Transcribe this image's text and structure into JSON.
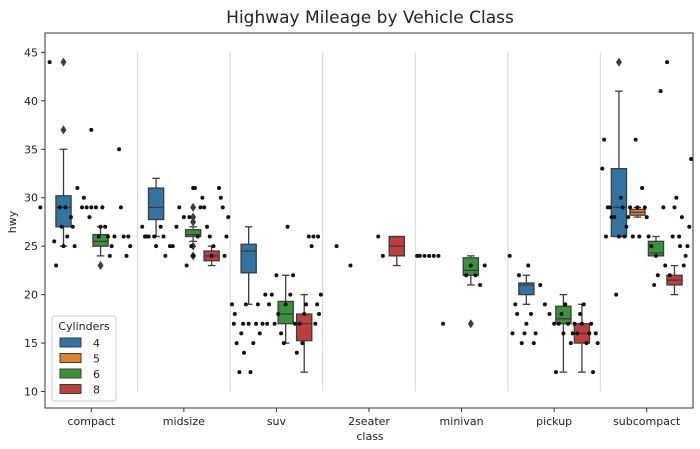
{
  "chart_data": {
    "type": "boxplot",
    "title": "Highway Mileage by Vehicle Class",
    "xlabel": "class",
    "ylabel": "hwy",
    "ylim": [
      8.3,
      47.0
    ],
    "yticks": [
      10,
      15,
      20,
      25,
      30,
      35,
      40,
      45
    ],
    "categories": [
      "compact",
      "midsize",
      "suv",
      "2seater",
      "minivan",
      "pickup",
      "subcompact"
    ],
    "legend": {
      "title": "Cylinders",
      "position": "lower-left"
    },
    "grid": false,
    "series": [
      {
        "name": "4",
        "color": "#3274a1",
        "boxes": {
          "compact": {
            "whislo": 25,
            "q1": 27,
            "med": 29,
            "q3": 30.2,
            "whishi": 35,
            "fliers": [
              37,
              44
            ]
          },
          "midsize": {
            "whislo": 26,
            "q1": 27.75,
            "med": 29,
            "q3": 31,
            "whishi": 32,
            "fliers": []
          },
          "suv": {
            "whislo": 19,
            "q1": 22.25,
            "med": 24.5,
            "q3": 25.2,
            "whishi": 27,
            "fliers": []
          },
          "minivan": null,
          "pickup": {
            "whislo": 19,
            "q1": 20,
            "med": 21,
            "q3": 21.2,
            "whishi": 22,
            "fliers": []
          },
          "subcompact": {
            "whislo": 26,
            "q1": 26,
            "med": 29,
            "q3": 33,
            "whishi": 41,
            "fliers": [
              44
            ]
          }
        }
      },
      {
        "name": "5",
        "color": "#e1812c",
        "boxes": {
          "subcompact": {
            "whislo": 28,
            "q1": 28.2,
            "med": 28.5,
            "q3": 28.8,
            "whishi": 29,
            "fliers": []
          }
        }
      },
      {
        "name": "6",
        "color": "#3a923a",
        "boxes": {
          "compact": {
            "whislo": 24,
            "q1": 25,
            "med": 25.5,
            "q3": 26.2,
            "whishi": 27,
            "fliers": [
              23
            ]
          },
          "midsize": {
            "whislo": 25.5,
            "q1": 26,
            "med": 26.2,
            "q3": 26.7,
            "whishi": 27,
            "fliers": [
              29,
              28,
              27.5,
              25,
              24
            ]
          },
          "suv": {
            "whislo": 15,
            "q1": 17,
            "med": 18,
            "q3": 19.3,
            "whishi": 22,
            "fliers": []
          },
          "minivan": {
            "whislo": 21,
            "q1": 22,
            "med": 22.5,
            "q3": 23.8,
            "whishi": 24,
            "fliers": [
              17
            ]
          },
          "pickup": {
            "whislo": 12,
            "q1": 17,
            "med": 17.5,
            "q3": 18.8,
            "whishi": 20,
            "fliers": []
          },
          "subcompact": {
            "whislo": 24,
            "q1": 24,
            "med": 24.3,
            "q3": 25.5,
            "whishi": 26,
            "fliers": []
          }
        }
      },
      {
        "name": "8",
        "color": "#c03d3e",
        "boxes": {
          "midsize": {
            "whislo": 23,
            "q1": 23.5,
            "med": 24,
            "q3": 24.5,
            "whishi": 25,
            "fliers": []
          },
          "suv": {
            "whislo": 12,
            "q1": 15.25,
            "med": 17,
            "q3": 18,
            "whishi": 20,
            "fliers": []
          },
          "2seater": {
            "whislo": 23,
            "q1": 24,
            "med": 25,
            "q3": 26,
            "whishi": 26,
            "fliers": []
          },
          "minivan": null,
          "pickup": {
            "whislo": 12,
            "q1": 15,
            "med": 16,
            "q3": 17,
            "whishi": 19,
            "fliers": []
          },
          "subcompact": {
            "whislo": 20,
            "q1": 21,
            "med": 21.5,
            "q3": 22,
            "whishi": 23,
            "fliers": []
          }
        }
      }
    ],
    "strip_points": {
      "compact": [
        [
          -0.45,
          44
        ],
        [
          -0.55,
          29
        ],
        [
          -0.4,
          25.5
        ],
        [
          -0.38,
          23
        ],
        [
          -0.34,
          29
        ],
        [
          -0.32,
          27
        ],
        [
          -0.3,
          25
        ],
        [
          -0.28,
          29
        ],
        [
          -0.26,
          26
        ],
        [
          -0.22,
          28
        ],
        [
          -0.2,
          27
        ],
        [
          -0.18,
          25
        ],
        [
          -0.15,
          31
        ],
        [
          -0.1,
          29
        ],
        [
          -0.08,
          30
        ],
        [
          -0.05,
          29
        ],
        [
          -0.02,
          28
        ],
        [
          0.0,
          37
        ],
        [
          0.0,
          29
        ],
        [
          0.05,
          29
        ],
        [
          0.08,
          26
        ],
        [
          0.1,
          27
        ],
        [
          0.12,
          29
        ],
        [
          0.15,
          27
        ],
        [
          0.18,
          26
        ],
        [
          0.2,
          24
        ],
        [
          0.22,
          25
        ],
        [
          0.25,
          26
        ],
        [
          0.3,
          35
        ],
        [
          0.32,
          29
        ],
        [
          0.35,
          26
        ],
        [
          0.38,
          24
        ],
        [
          0.4,
          26
        ],
        [
          0.42,
          25
        ]
      ],
      "midsize": [
        [
          -0.45,
          27
        ],
        [
          -0.42,
          26
        ],
        [
          -0.4,
          26
        ],
        [
          -0.38,
          26
        ],
        [
          -0.32,
          26
        ],
        [
          -0.3,
          25
        ],
        [
          -0.25,
          27
        ],
        [
          -0.22,
          26
        ],
        [
          -0.2,
          24
        ],
        [
          -0.15,
          25
        ],
        [
          -0.12,
          25
        ],
        [
          -0.08,
          27
        ],
        [
          -0.05,
          29
        ],
        [
          0.0,
          28
        ],
        [
          0.03,
          23
        ],
        [
          0.06,
          28
        ],
        [
          0.08,
          25
        ],
        [
          0.1,
          24
        ],
        [
          0.15,
          26
        ],
        [
          0.18,
          29
        ],
        [
          0.2,
          30
        ],
        [
          0.22,
          29
        ],
        [
          0.25,
          27
        ],
        [
          0.28,
          26
        ],
        [
          0.3,
          24
        ],
        [
          0.32,
          25
        ],
        [
          0.38,
          31
        ],
        [
          0.4,
          30
        ],
        [
          0.42,
          29
        ],
        [
          0.44,
          24
        ],
        [
          0.46,
          26
        ],
        [
          0.48,
          28
        ],
        [
          0.1,
          31
        ],
        [
          0.12,
          31
        ]
      ],
      "suv": [
        [
          -0.48,
          19
        ],
        [
          -0.46,
          17
        ],
        [
          -0.45,
          18
        ],
        [
          -0.43,
          15
        ],
        [
          -0.4,
          12
        ],
        [
          -0.38,
          16
        ],
        [
          -0.36,
          17
        ],
        [
          -0.35,
          14
        ],
        [
          -0.33,
          19
        ],
        [
          -0.3,
          17
        ],
        [
          -0.28,
          12
        ],
        [
          -0.25,
          15
        ],
        [
          -0.22,
          17
        ],
        [
          -0.2,
          19
        ],
        [
          -0.18,
          16
        ],
        [
          -0.15,
          17
        ],
        [
          -0.12,
          20
        ],
        [
          -0.1,
          17
        ],
        [
          -0.08,
          19
        ],
        [
          -0.05,
          20
        ],
        [
          -0.02,
          17
        ],
        [
          0.0,
          22
        ],
        [
          0.02,
          18
        ],
        [
          0.05,
          16
        ],
        [
          0.08,
          15
        ],
        [
          0.1,
          19
        ],
        [
          0.12,
          27
        ],
        [
          0.15,
          20
        ],
        [
          0.18,
          22
        ],
        [
          0.2,
          17
        ],
        [
          0.22,
          14
        ],
        [
          0.25,
          17
        ],
        [
          0.28,
          15
        ],
        [
          0.3,
          18
        ],
        [
          0.32,
          19
        ],
        [
          0.35,
          26
        ],
        [
          0.38,
          25
        ],
        [
          0.4,
          26
        ],
        [
          0.42,
          17
        ],
        [
          0.44,
          19
        ],
        [
          0.46,
          18
        ],
        [
          0.48,
          20
        ],
        [
          0.45,
          26
        ]
      ],
      "2seater": [
        [
          -0.35,
          25
        ],
        [
          -0.2,
          23
        ],
        [
          0.1,
          26
        ],
        [
          0.15,
          24
        ]
      ],
      "minivan": [
        [
          -0.48,
          24
        ],
        [
          -0.45,
          24
        ],
        [
          -0.4,
          24
        ],
        [
          -0.35,
          24
        ],
        [
          -0.3,
          24
        ],
        [
          -0.25,
          24
        ],
        [
          -0.2,
          17
        ],
        [
          0.05,
          22
        ],
        [
          0.1,
          23
        ],
        [
          0.15,
          22
        ],
        [
          0.2,
          21
        ],
        [
          0.25,
          23
        ]
      ],
      "pickup": [
        [
          -0.48,
          24
        ],
        [
          -0.45,
          16
        ],
        [
          -0.42,
          19
        ],
        [
          -0.4,
          18
        ],
        [
          -0.38,
          22
        ],
        [
          -0.35,
          15
        ],
        [
          -0.32,
          16
        ],
        [
          -0.3,
          17
        ],
        [
          -0.28,
          23
        ],
        [
          -0.25,
          18
        ],
        [
          -0.22,
          15
        ],
        [
          -0.2,
          16
        ],
        [
          -0.15,
          21
        ],
        [
          -0.1,
          19
        ],
        [
          -0.05,
          18
        ],
        [
          0.0,
          17
        ],
        [
          0.02,
          12
        ],
        [
          0.05,
          17
        ],
        [
          0.08,
          18
        ],
        [
          0.1,
          16
        ],
        [
          0.12,
          19
        ],
        [
          0.15,
          17
        ],
        [
          0.18,
          15
        ],
        [
          0.2,
          16
        ],
        [
          0.22,
          17
        ],
        [
          0.25,
          16
        ],
        [
          0.28,
          18
        ],
        [
          0.3,
          17
        ],
        [
          0.32,
          19
        ],
        [
          0.35,
          15
        ],
        [
          0.38,
          16
        ],
        [
          0.4,
          17
        ],
        [
          0.42,
          12
        ],
        [
          0.45,
          16
        ],
        [
          0.47,
          15
        ]
      ],
      "subcompact": [
        [
          -0.48,
          33
        ],
        [
          -0.46,
          36
        ],
        [
          -0.44,
          26
        ],
        [
          -0.42,
          29
        ],
        [
          -0.4,
          29
        ],
        [
          -0.38,
          28
        ],
        [
          -0.35,
          28
        ],
        [
          -0.33,
          20
        ],
        [
          -0.3,
          26
        ],
        [
          -0.28,
          30
        ],
        [
          -0.26,
          29
        ],
        [
          -0.24,
          26
        ],
        [
          -0.22,
          27
        ],
        [
          -0.2,
          28
        ],
        [
          -0.18,
          29
        ],
        [
          -0.15,
          26
        ],
        [
          -0.12,
          36
        ],
        [
          -0.1,
          29
        ],
        [
          -0.08,
          26
        ],
        [
          -0.05,
          31
        ],
        [
          -0.02,
          29
        ],
        [
          0.0,
          28
        ],
        [
          0.02,
          26
        ],
        [
          0.05,
          25
        ],
        [
          0.08,
          21
        ],
        [
          0.1,
          24
        ],
        [
          0.12,
          22
        ],
        [
          0.15,
          41
        ],
        [
          0.18,
          29
        ],
        [
          0.2,
          23
        ],
        [
          0.22,
          44
        ],
        [
          0.25,
          22
        ],
        [
          0.28,
          26
        ],
        [
          0.3,
          29
        ],
        [
          0.32,
          30
        ],
        [
          0.35,
          26
        ],
        [
          0.38,
          28
        ],
        [
          0.4,
          23
        ],
        [
          0.42,
          24
        ],
        [
          0.44,
          25
        ],
        [
          0.46,
          27
        ],
        [
          0.48,
          34
        ],
        [
          0.36,
          25
        ]
      ]
    }
  }
}
